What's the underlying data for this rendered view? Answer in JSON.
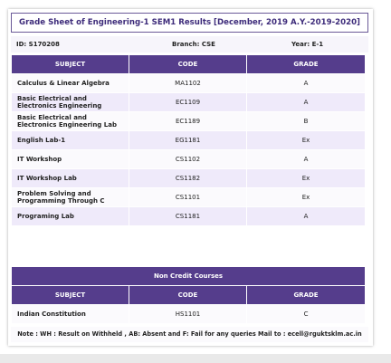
{
  "header": {
    "title": "Grade Sheet of Engineering-1 SEM1 Results [December, 2019 A.Y.-2019-2020]"
  },
  "info": {
    "id": "ID: S170208",
    "branch": "Branch: CSE",
    "year": "Year: E-1"
  },
  "table": {
    "columns": [
      "SUBJECT",
      "CODE",
      "GRADE"
    ],
    "rows": [
      [
        "Calculus & Linear Algebra",
        "MA1102",
        "A"
      ],
      [
        "Basic Electrical and Electronics Engineering",
        "EC1109",
        "A"
      ],
      [
        "Basic Electrical and Electronics Engineering Lab",
        "EC1189",
        "B"
      ],
      [
        "English Lab-1",
        "EG1181",
        "Ex"
      ],
      [
        "IT Workshop",
        "CS1102",
        "A"
      ],
      [
        "IT Workshop Lab",
        "CS1182",
        "Ex"
      ],
      [
        "Problem Solving and Programming Through C",
        "CS1101",
        "Ex"
      ],
      [
        "Programing Lab",
        "CS1181",
        "A"
      ]
    ]
  },
  "non_credit": {
    "title": "Non Credit Courses",
    "columns": [
      "SUBJECT",
      "CODE",
      "GRADE"
    ],
    "rows": [
      [
        "Indian Constitution",
        "HS1101",
        "C"
      ]
    ]
  },
  "note": "Note : WH : Result on Withheld , AB: Absent and F: Fail for any queries Mail to : ecell@rguktsklm.ac.in"
}
